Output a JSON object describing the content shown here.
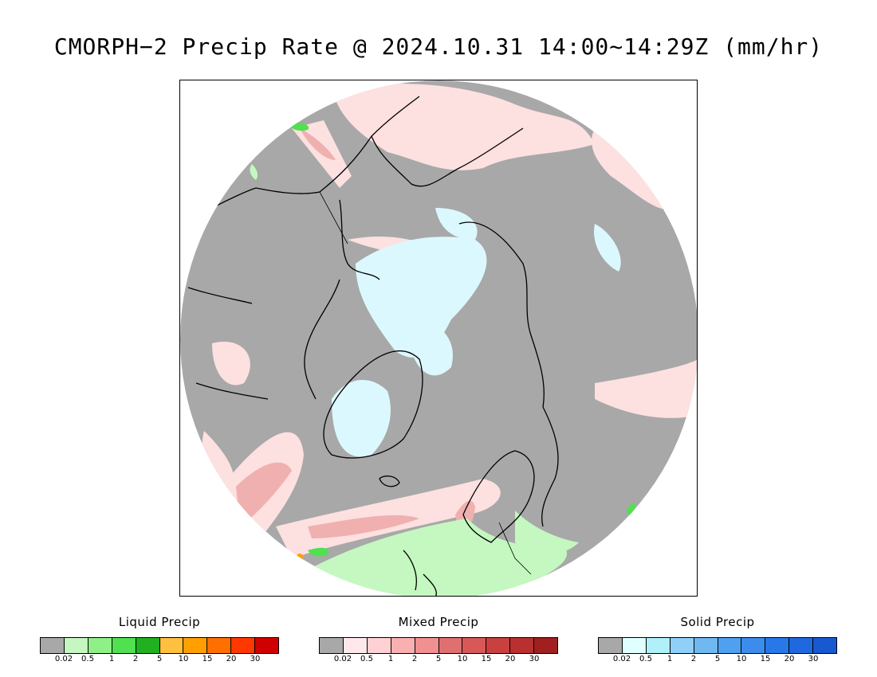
{
  "title": "CMORPH−2 Precip Rate @ 2024.10.31 14:00~14:29Z (mm/hr)",
  "map": {
    "projection": "north-polar-stereographic",
    "background_color": "#a8a8a8",
    "coastline_color": "#000000"
  },
  "legends": [
    {
      "id": "liquid",
      "title": "Liquid Precip",
      "colors": [
        "#a8a8a8",
        "#c4f8c0",
        "#90f088",
        "#50e050",
        "#20b020",
        "#ffc040",
        "#ffa000",
        "#ff7000",
        "#ff3800",
        "#d00000"
      ],
      "ticks": [
        "0.02",
        "0.5",
        "1",
        "2",
        "5",
        "10",
        "15",
        "20",
        "30"
      ]
    },
    {
      "id": "mixed",
      "title": "Mixed Precip",
      "colors": [
        "#a8a8a8",
        "#ffe8ec",
        "#ffd0d4",
        "#f8b0b0",
        "#f09090",
        "#e07070",
        "#d85858",
        "#c84040",
        "#b83030",
        "#a02020"
      ],
      "ticks": [
        "0.02",
        "0.5",
        "1",
        "2",
        "5",
        "10",
        "15",
        "20",
        "30"
      ]
    },
    {
      "id": "solid",
      "title": "Solid Precip",
      "colors": [
        "#a8a8a8",
        "#e0ffff",
        "#b0f0f8",
        "#90d0f8",
        "#70b8f0",
        "#50a0f0",
        "#3c8cec",
        "#2878e8",
        "#2068e0",
        "#1858d0"
      ],
      "ticks": [
        "0.02",
        "0.5",
        "1",
        "2",
        "5",
        "10",
        "15",
        "20",
        "30"
      ]
    }
  ]
}
